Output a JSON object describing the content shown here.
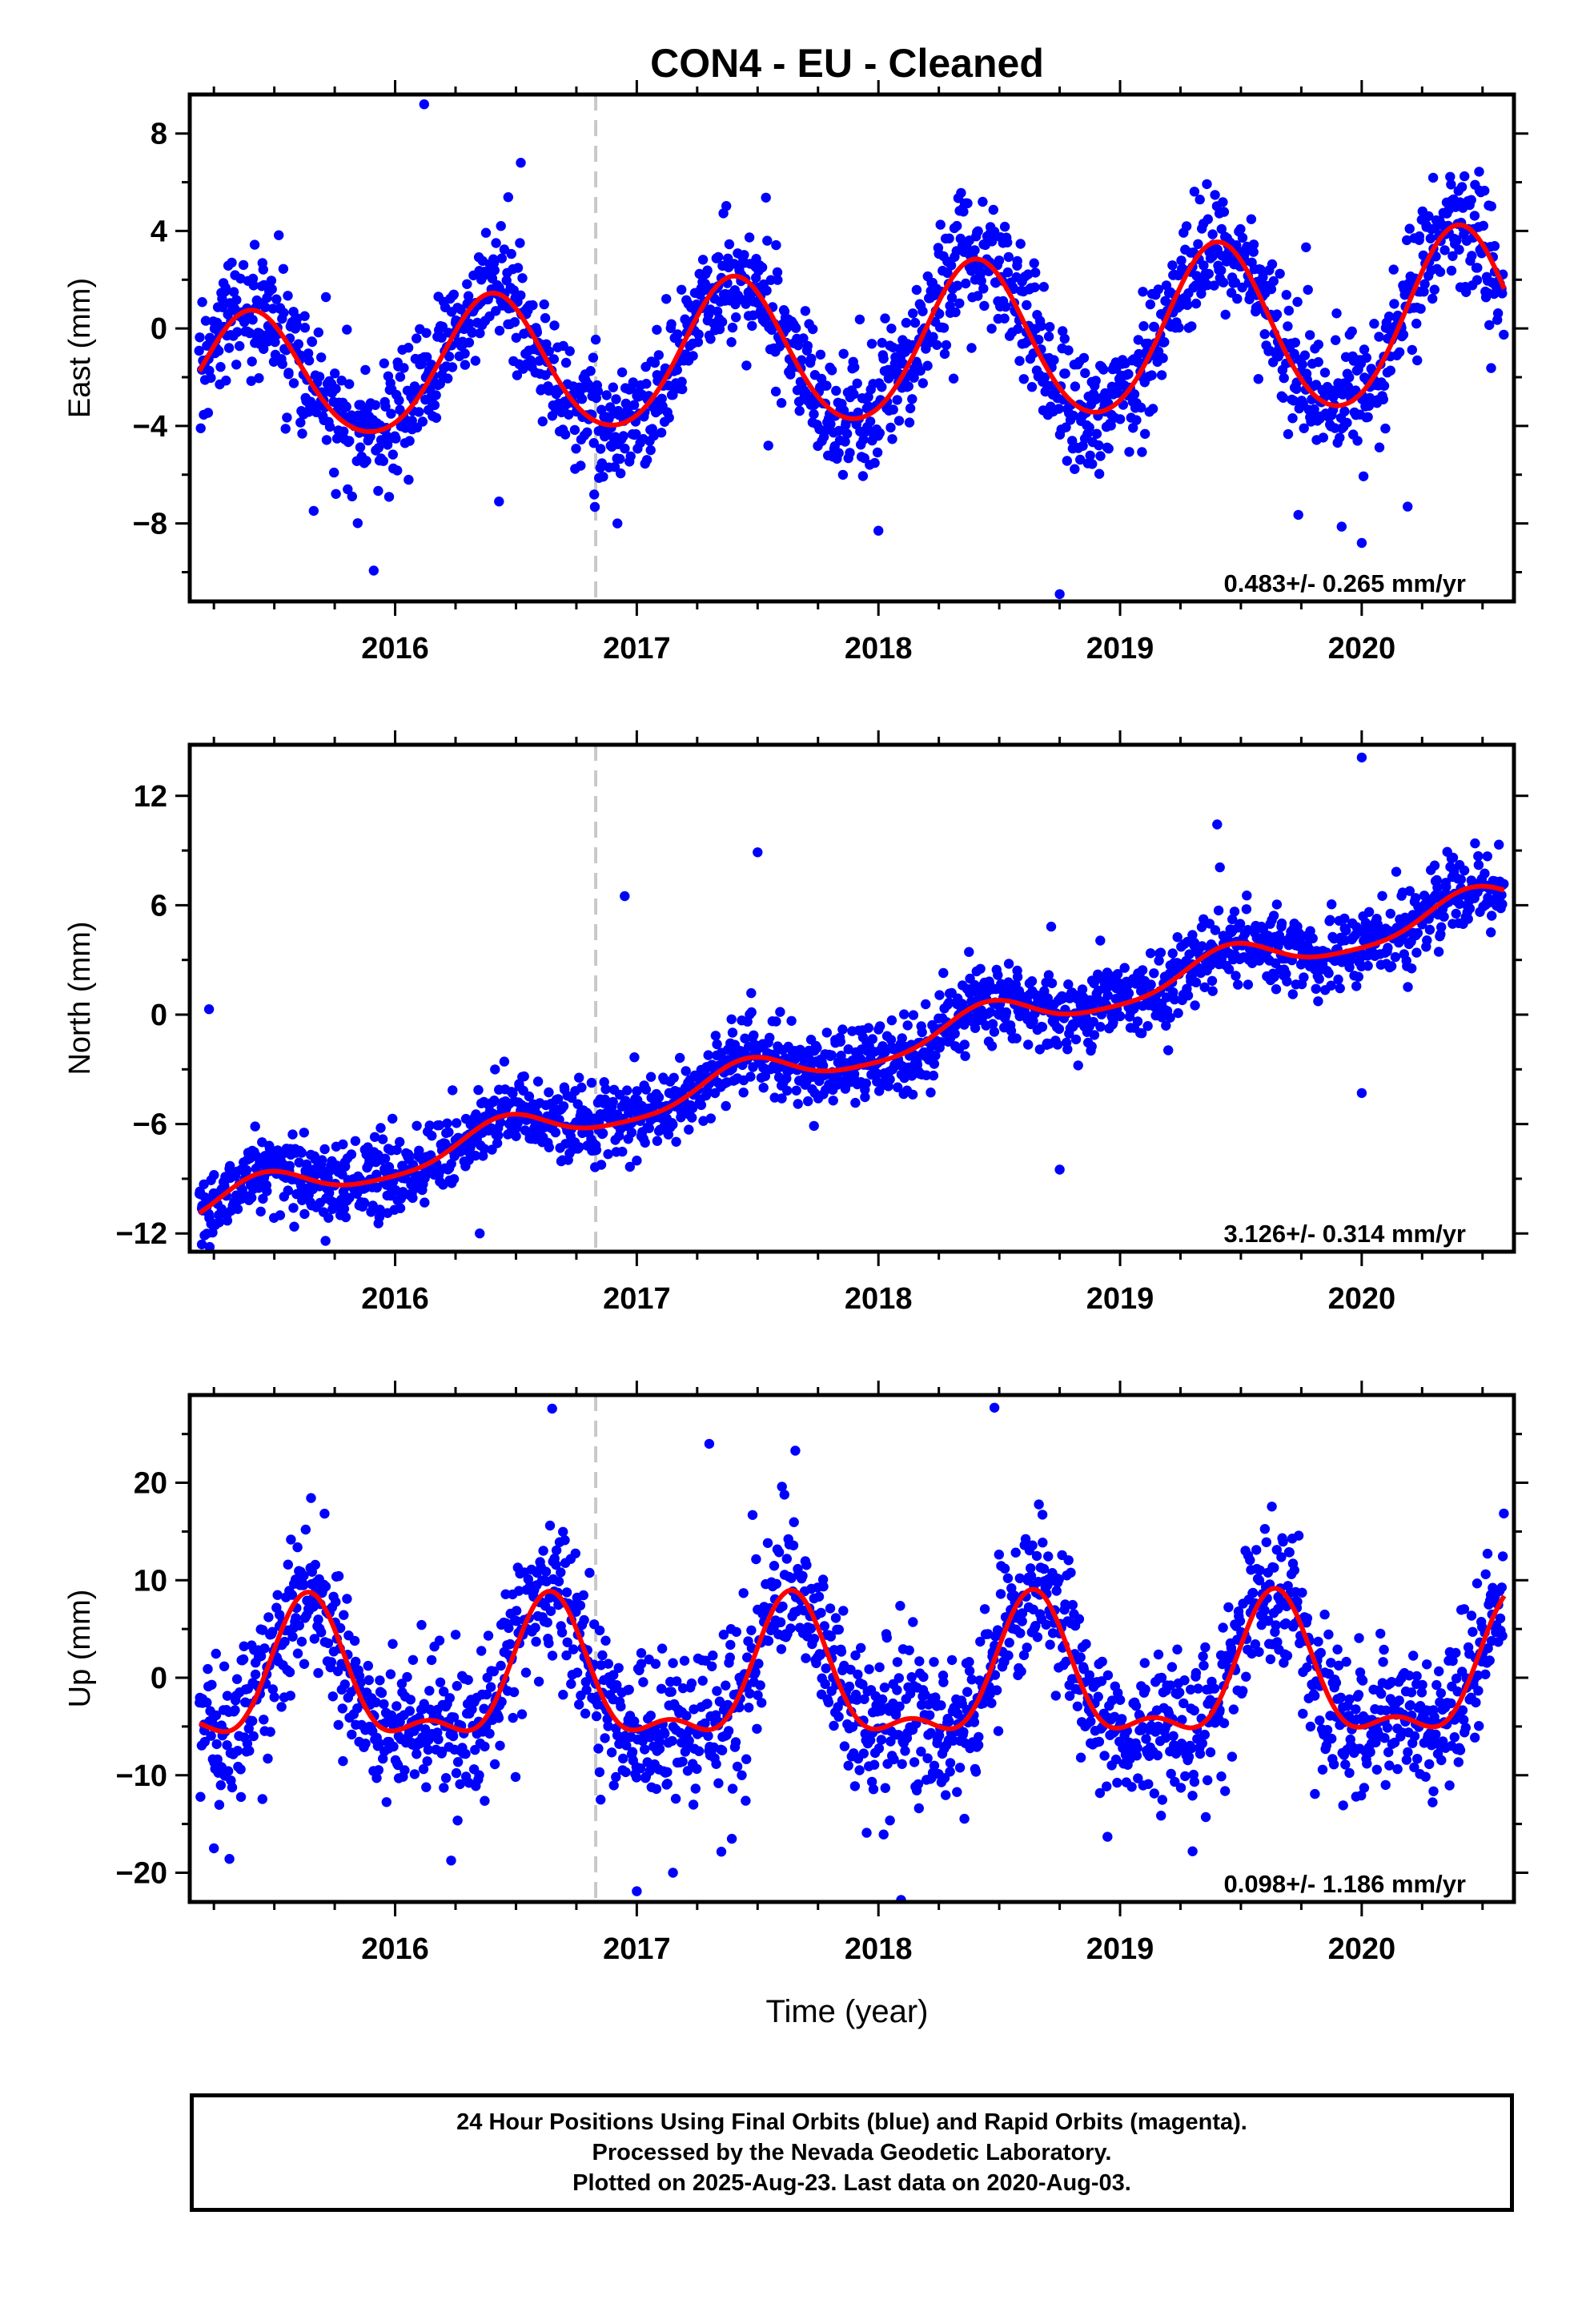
{
  "title": "CON4  - EU - Cleaned",
  "xlabel": "Time (year)",
  "footer": {
    "line1": "24 Hour Positions Using Final Orbits (blue) and Rapid Orbits (magenta).",
    "line2": "Processed by the Nevada Geodetic Laboratory.",
    "line3": "Plotted on 2025-Aug-23. Last data on 2020-Aug-03."
  },
  "colors": {
    "points": "#0000ff",
    "fit": "#ff0000",
    "event_line": "#c8c8c8",
    "frame": "#000000"
  },
  "chart_data": [
    {
      "type": "scatter",
      "ylabel": "East (mm)",
      "xlim": [
        2015.15,
        2020.63
      ],
      "ylim": [
        -11.2,
        9.6
      ],
      "xticks": [
        2016,
        2017,
        2018,
        2019,
        2020
      ],
      "yticks": [
        -8,
        -4,
        0,
        4,
        8
      ],
      "ytick_labels": [
        "−8",
        "−4",
        "0",
        "4",
        "8"
      ],
      "rate": "0.483+/- 0.265 mm/yr",
      "event_x": 2016.83,
      "fit": {
        "offset": -0.85,
        "trend": 0.483,
        "annual_amp": 3.1,
        "annual_peak": 2015.4,
        "semi_amp": 0.25,
        "semi_peak": 2015.4,
        "bias_growth": 0.35
      },
      "scatter_sd": 1.25,
      "n_points": 1850,
      "outliers": [
        [
          2016.12,
          9.2
        ],
        [
          2016.52,
          6.8
        ],
        [
          2018.75,
          -10.9
        ],
        [
          2020.0,
          -8.8
        ],
        [
          2018.0,
          -8.3
        ],
        [
          2016.43,
          -7.1
        ],
        [
          2016.92,
          -8.0
        ]
      ]
    },
    {
      "type": "scatter",
      "ylabel": "North (mm)",
      "xlim": [
        2015.15,
        2020.63
      ],
      "ylim": [
        -13.0,
        14.8
      ],
      "xticks": [
        2016,
        2017,
        2018,
        2019,
        2020
      ],
      "yticks": [
        -12,
        -6,
        0,
        6,
        12
      ],
      "ytick_labels": [
        "−12",
        "−6",
        "0",
        "6",
        "12"
      ],
      "rate": "3.126+/- 0.314 mm/yr",
      "event_x": 2016.83,
      "fit": {
        "offset": -2.15,
        "trend": 3.126,
        "annual_amp": 0.95,
        "annual_peak": 2015.45,
        "semi_amp": 0.2,
        "semi_peak": 2015.45,
        "bias_growth": 0
      },
      "scatter_sd": 1.05,
      "n_points": 1850,
      "outliers": [
        [
          2015.2,
          -12.6
        ],
        [
          2015.23,
          0.3
        ],
        [
          2016.95,
          6.5
        ],
        [
          2017.5,
          8.9
        ],
        [
          2020.0,
          14.1
        ],
        [
          2020.0,
          -4.3
        ],
        [
          2018.75,
          -8.5
        ],
        [
          2016.35,
          -12.0
        ],
        [
          2017.0,
          -8.0
        ]
      ]
    },
    {
      "type": "scatter",
      "ylabel": "Up (mm)",
      "xlim": [
        2015.15,
        2020.63
      ],
      "ylim": [
        -23.0,
        29.0
      ],
      "xticks": [
        2016,
        2017,
        2018,
        2019,
        2020
      ],
      "yticks": [
        -20,
        -10,
        0,
        10,
        20
      ],
      "ytick_labels": [
        "−20",
        "−10",
        "0",
        "10",
        "20"
      ],
      "rate": "0.098+/- 1.186 mm/yr",
      "event_x": 2016.83,
      "fit": {
        "offset": -0.5,
        "trend": 0.098,
        "annual_amp": 6.6,
        "annual_peak": 2015.64,
        "semi_amp": 2.9,
        "semi_peak": 2015.64,
        "bias_growth": 0
      },
      "scatter_sd": 3.8,
      "n_points": 1850,
      "outliers": [
        [
          2016.65,
          27.6
        ],
        [
          2018.48,
          27.7
        ],
        [
          2017.0,
          -21.9
        ],
        [
          2017.15,
          -20.0
        ],
        [
          2015.25,
          -17.5
        ],
        [
          2019.3,
          -17.8
        ],
        [
          2017.3,
          24.0
        ]
      ]
    }
  ]
}
